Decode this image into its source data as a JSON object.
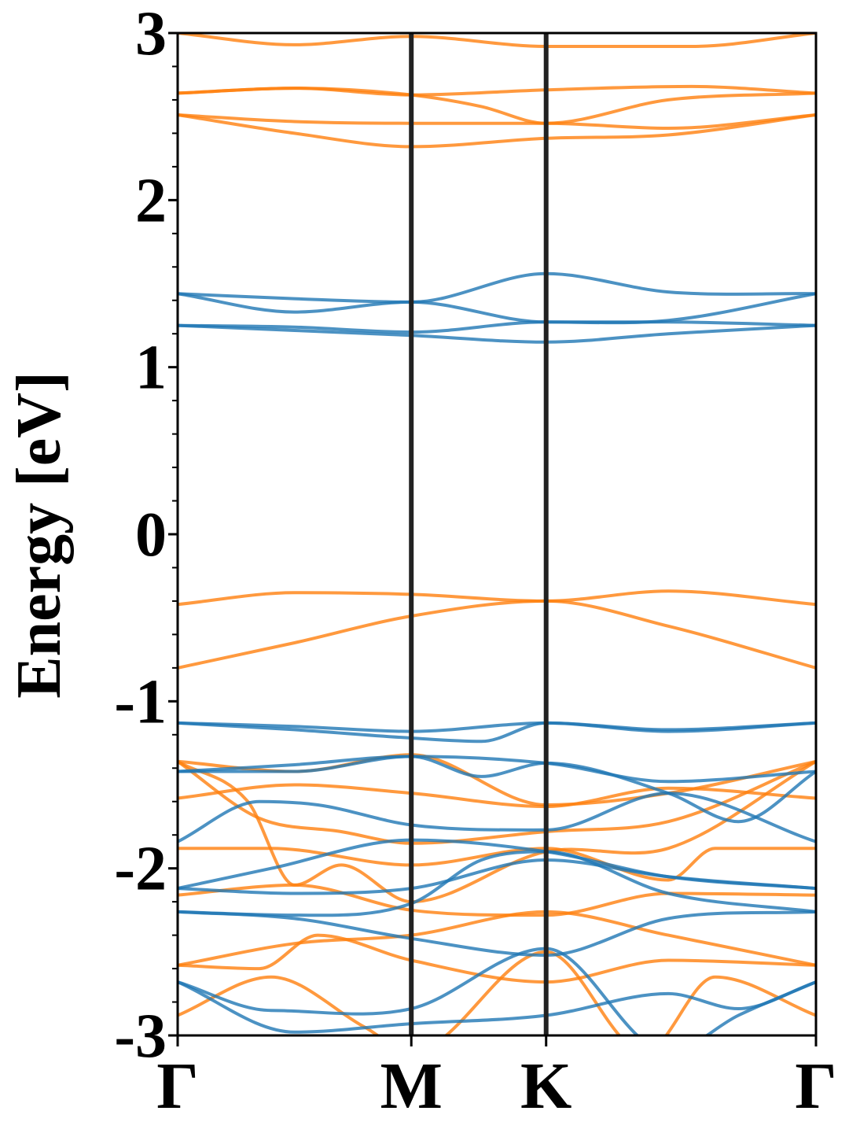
{
  "chart_data": {
    "type": "line",
    "ylabel": "Energy [eV]",
    "xlabel": "",
    "ylim": [
      -3,
      3
    ],
    "y_ticks": [
      "-3",
      "-2",
      "-1",
      "0",
      "1",
      "2",
      "3"
    ],
    "y_minor_step": 0.2,
    "x_ticks": [
      {
        "label": "Γ",
        "x": 0.0
      },
      {
        "label": "M",
        "x": 1.0
      },
      {
        "label": "K",
        "x": 1.577
      },
      {
        "label": "Γ",
        "x": 2.732
      }
    ],
    "high_symmetry_lines_color": "#222222",
    "series_groups": [
      {
        "color": "#ff7f0e",
        "bands": [
          [
            [
              0,
              3.0
            ],
            [
              0.5,
              2.93
            ],
            [
              1.0,
              2.98
            ],
            [
              1.577,
              2.92
            ],
            [
              2.2,
              2.92
            ],
            [
              2.732,
              3.0
            ]
          ],
          [
            [
              0,
              2.64
            ],
            [
              0.5,
              2.67
            ],
            [
              1.0,
              2.63
            ],
            [
              1.577,
              2.66
            ],
            [
              2.2,
              2.68
            ],
            [
              2.732,
              2.64
            ]
          ],
          [
            [
              0,
              2.64
            ],
            [
              0.5,
              2.67
            ],
            [
              1.0,
              2.63
            ],
            [
              1.3,
              2.56
            ],
            [
              1.577,
              2.46
            ],
            [
              2.1,
              2.6
            ],
            [
              2.732,
              2.64
            ]
          ],
          [
            [
              0,
              2.51
            ],
            [
              0.5,
              2.47
            ],
            [
              1.0,
              2.46
            ],
            [
              1.577,
              2.46
            ],
            [
              2.1,
              2.43
            ],
            [
              2.732,
              2.51
            ]
          ],
          [
            [
              0,
              2.51
            ],
            [
              0.5,
              2.4
            ],
            [
              1.0,
              2.32
            ],
            [
              1.577,
              2.37
            ],
            [
              2.1,
              2.39
            ],
            [
              2.732,
              2.51
            ]
          ],
          [
            [
              0,
              -0.42
            ],
            [
              0.5,
              -0.35
            ],
            [
              1.0,
              -0.36
            ],
            [
              1.577,
              -0.4
            ],
            [
              2.1,
              -0.34
            ],
            [
              2.732,
              -0.42
            ]
          ],
          [
            [
              0,
              -0.8
            ],
            [
              0.5,
              -0.65
            ],
            [
              1.0,
              -0.49
            ],
            [
              1.577,
              -0.4
            ],
            [
              2.1,
              -0.55
            ],
            [
              2.732,
              -0.8
            ]
          ],
          [
            [
              0,
              -1.36
            ],
            [
              0.5,
              -1.42
            ],
            [
              1.0,
              -1.32
            ],
            [
              1.577,
              -1.62
            ],
            [
              2.1,
              -1.55
            ],
            [
              2.732,
              -1.36
            ]
          ],
          [
            [
              0,
              -1.58
            ],
            [
              0.5,
              -1.5
            ],
            [
              1.0,
              -1.55
            ],
            [
              1.577,
              -1.63
            ],
            [
              2.1,
              -1.52
            ],
            [
              2.732,
              -1.58
            ]
          ],
          [
            [
              0,
              -1.36
            ],
            [
              0.35,
              -1.7
            ],
            [
              0.7,
              -1.78
            ],
            [
              1.0,
              -1.85
            ],
            [
              1.577,
              -1.78
            ],
            [
              2.1,
              -1.72
            ],
            [
              2.732,
              -1.36
            ]
          ],
          [
            [
              0,
              -1.88
            ],
            [
              0.4,
              -1.88
            ],
            [
              1.0,
              -1.98
            ],
            [
              1.577,
              -1.88
            ],
            [
              2.1,
              -2.07
            ],
            [
              2.3,
              -1.88
            ],
            [
              2.732,
              -1.88
            ]
          ],
          [
            [
              0,
              -1.36
            ],
            [
              0.3,
              -1.6
            ],
            [
              0.5,
              -2.1
            ],
            [
              0.7,
              -1.98
            ],
            [
              1.0,
              -2.2
            ],
            [
              1.577,
              -1.9
            ],
            [
              2.1,
              -1.88
            ],
            [
              2.732,
              -1.36
            ]
          ],
          [
            [
              0,
              -2.16
            ],
            [
              0.5,
              -2.1
            ],
            [
              1.0,
              -2.25
            ],
            [
              1.577,
              -2.28
            ],
            [
              2.1,
              -2.15
            ],
            [
              2.732,
              -2.16
            ]
          ],
          [
            [
              0,
              -2.58
            ],
            [
              0.5,
              -2.45
            ],
            [
              1.0,
              -2.4
            ],
            [
              1.577,
              -2.26
            ],
            [
              2.1,
              -2.4
            ],
            [
              2.732,
              -2.58
            ]
          ],
          [
            [
              0,
              -2.58
            ],
            [
              0.35,
              -2.6
            ],
            [
              0.6,
              -2.4
            ],
            [
              1.0,
              -2.55
            ],
            [
              1.577,
              -2.68
            ],
            [
              2.1,
              -2.55
            ],
            [
              2.732,
              -2.58
            ]
          ],
          [
            [
              0,
              -2.88
            ],
            [
              0.4,
              -2.65
            ],
            [
              0.8,
              -2.95
            ],
            [
              1.0,
              -3.1
            ],
            [
              1.577,
              -2.5
            ],
            [
              2.0,
              -3.1
            ],
            [
              2.3,
              -2.65
            ],
            [
              2.732,
              -2.88
            ]
          ]
        ]
      },
      {
        "color": "#1f77b4",
        "bands": [
          [
            [
              0,
              1.44
            ],
            [
              0.5,
              1.41
            ],
            [
              1.0,
              1.39
            ],
            [
              1.577,
              1.56
            ],
            [
              2.1,
              1.45
            ],
            [
              2.732,
              1.44
            ]
          ],
          [
            [
              0,
              1.44
            ],
            [
              0.5,
              1.33
            ],
            [
              1.0,
              1.39
            ],
            [
              1.577,
              1.27
            ],
            [
              2.1,
              1.28
            ],
            [
              2.732,
              1.44
            ]
          ],
          [
            [
              0,
              1.25
            ],
            [
              0.5,
              1.24
            ],
            [
              1.0,
              1.21
            ],
            [
              1.577,
              1.27
            ],
            [
              2.1,
              1.27
            ],
            [
              2.732,
              1.25
            ]
          ],
          [
            [
              0,
              1.25
            ],
            [
              0.5,
              1.22
            ],
            [
              1.0,
              1.19
            ],
            [
              1.577,
              1.15
            ],
            [
              2.1,
              1.2
            ],
            [
              2.732,
              1.25
            ]
          ],
          [
            [
              0,
              -1.13
            ],
            [
              0.5,
              -1.15
            ],
            [
              1.0,
              -1.18
            ],
            [
              1.577,
              -1.13
            ],
            [
              2.1,
              -1.17
            ],
            [
              2.732,
              -1.13
            ]
          ],
          [
            [
              0,
              -1.13
            ],
            [
              0.5,
              -1.17
            ],
            [
              1.0,
              -1.22
            ],
            [
              1.3,
              -1.24
            ],
            [
              1.577,
              -1.13
            ],
            [
              2.1,
              -1.18
            ],
            [
              2.732,
              -1.13
            ]
          ],
          [
            [
              0,
              -1.42
            ],
            [
              0.5,
              -1.38
            ],
            [
              1.0,
              -1.33
            ],
            [
              1.577,
              -1.37
            ],
            [
              2.1,
              -1.48
            ],
            [
              2.732,
              -1.42
            ]
          ],
          [
            [
              0,
              -1.42
            ],
            [
              0.5,
              -1.42
            ],
            [
              1.0,
              -1.33
            ],
            [
              1.3,
              -1.45
            ],
            [
              1.577,
              -1.37
            ],
            [
              2.1,
              -1.55
            ],
            [
              2.4,
              -1.72
            ],
            [
              2.732,
              -1.42
            ]
          ],
          [
            [
              0,
              -1.84
            ],
            [
              0.35,
              -1.6
            ],
            [
              0.6,
              -1.62
            ],
            [
              1.0,
              -1.74
            ],
            [
              1.577,
              -1.77
            ],
            [
              2.1,
              -1.55
            ],
            [
              2.732,
              -1.84
            ]
          ],
          [
            [
              0,
              -2.12
            ],
            [
              0.4,
              -2.0
            ],
            [
              1.0,
              -1.83
            ],
            [
              1.577,
              -1.9
            ],
            [
              2.1,
              -2.05
            ],
            [
              2.732,
              -2.12
            ]
          ],
          [
            [
              0,
              -2.12
            ],
            [
              0.5,
              -2.15
            ],
            [
              1.0,
              -2.12
            ],
            [
              1.577,
              -1.95
            ],
            [
              2.1,
              -2.05
            ],
            [
              2.732,
              -2.12
            ]
          ],
          [
            [
              0,
              -2.26
            ],
            [
              0.5,
              -2.28
            ],
            [
              1.0,
              -2.21
            ],
            [
              1.3,
              -1.95
            ],
            [
              1.577,
              -1.9
            ],
            [
              2.1,
              -2.15
            ],
            [
              2.732,
              -2.26
            ]
          ],
          [
            [
              0,
              -2.26
            ],
            [
              0.5,
              -2.3
            ],
            [
              1.0,
              -2.42
            ],
            [
              1.577,
              -2.52
            ],
            [
              2.1,
              -2.3
            ],
            [
              2.732,
              -2.26
            ]
          ],
          [
            [
              0,
              -2.68
            ],
            [
              0.4,
              -2.85
            ],
            [
              1.0,
              -2.84
            ],
            [
              1.577,
              -2.48
            ],
            [
              2.1,
              -3.1
            ],
            [
              2.4,
              -2.88
            ],
            [
              2.732,
              -2.68
            ]
          ],
          [
            [
              0,
              -2.68
            ],
            [
              0.5,
              -2.98
            ],
            [
              1.0,
              -2.93
            ],
            [
              1.577,
              -2.88
            ],
            [
              2.1,
              -2.75
            ],
            [
              2.4,
              -2.84
            ],
            [
              2.732,
              -2.68
            ]
          ]
        ]
      }
    ]
  }
}
